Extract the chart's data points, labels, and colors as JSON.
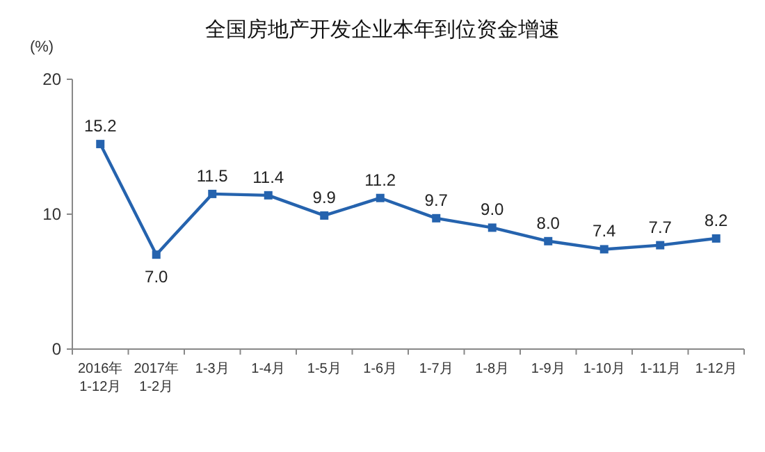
{
  "chart_data": {
    "type": "line",
    "title": "全国房地产开发企业本年到位资金增速",
    "ylabel": "(%)",
    "categories": [
      "2016年\n1-12月",
      "2017年\n1-2月",
      "1-3月",
      "1-4月",
      "1-5月",
      "1-6月",
      "1-7月",
      "1-8月",
      "1-9月",
      "1-10月",
      "1-11月",
      "1-12月"
    ],
    "series": [
      {
        "color": "#2563ae",
        "values": [
          15.2,
          7.0,
          11.5,
          11.4,
          9.9,
          11.2,
          9.7,
          9.0,
          8.0,
          7.4,
          7.7,
          8.2
        ],
        "value_labels": [
          "15.2",
          "7.0",
          "11.5",
          "11.4",
          "9.9",
          "11.2",
          "9.7",
          "9.0",
          "8.0",
          "7.4",
          "7.7",
          "8.2"
        ]
      }
    ],
    "ylim": [
      0,
      20
    ],
    "yticks": [
      0,
      10,
      20
    ],
    "marker": "square",
    "line_style": "solid"
  }
}
